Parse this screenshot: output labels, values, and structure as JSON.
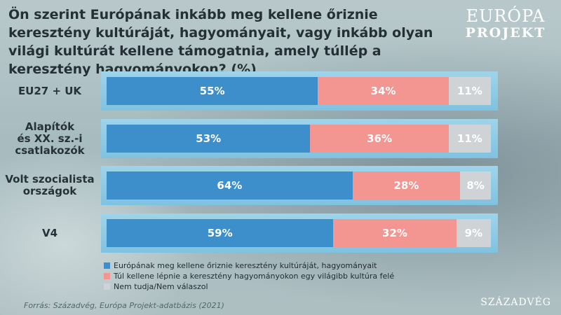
{
  "header": {
    "title": "Ön szerint Európának inkább meg kellene őriznie keresztény kultúráját, hagyományait, vagy inkább olyan világi kultúrát kellene támogatnia, amely túllép a keresztény hagyományokon? (%)",
    "logo_top": "EURÓPA",
    "logo_bottom": "PROJEKT"
  },
  "chart_data": {
    "type": "bar",
    "orientation": "horizontal",
    "stacked": true,
    "categories": [
      "EU27 + UK",
      "Alapítók és XX. sz.-i csatlakozók",
      "Volt szocialista országok",
      "V4"
    ],
    "series": [
      {
        "name": "Európának meg kellene őriznie keresztény kultúráját, hagyományait",
        "values": [
          55,
          53,
          64,
          59
        ],
        "labels": [
          "55%",
          "53%",
          "64%",
          "59%"
        ]
      },
      {
        "name": "Túl kellene lépnie a keresztény hagyományokon egy világibb kultúra felé",
        "values": [
          34,
          36,
          28,
          32
        ],
        "labels": [
          "34%",
          "36%",
          "28%",
          "32%"
        ]
      },
      {
        "name": "Nem tudja/Nem válaszol",
        "values": [
          11,
          11,
          8,
          9
        ],
        "labels": [
          "11%",
          "11%",
          "8%",
          "9%"
        ]
      }
    ],
    "colors": [
      "#3d8fcc",
      "#f39591",
      "#cfd3d6"
    ],
    "legend_position": "bottom"
  },
  "footer": {
    "source": "Forrás: Századvég, Európa Projekt-adatbázis (2021)",
    "brand": "SZÁZADVÉG"
  }
}
